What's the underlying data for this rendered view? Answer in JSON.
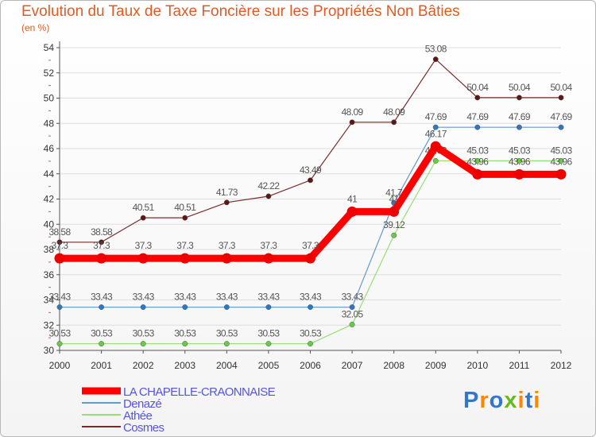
{
  "title": "Evolution du Taux de Taxe Foncière sur les Propriétés Non Bâties",
  "unit_label": "(en %)",
  "logo_text": "Proxiti",
  "colors": {
    "title": "#e05a24",
    "axis": "#555555",
    "grid": "#dddddd",
    "legend_text": "#5555dd"
  },
  "chart_data": {
    "type": "line",
    "title": "Evolution du Taux de Taxe Foncière sur les Propriétés Non Bâties",
    "ylabel": "(en %)",
    "xlabel": "",
    "x": [
      "2000",
      "2001",
      "2002",
      "2003",
      "2004",
      "2005",
      "2006",
      "2007",
      "2008",
      "2009",
      "2010",
      "2011",
      "2012"
    ],
    "ylim": [
      30,
      54
    ],
    "yticks": [
      30,
      32,
      34,
      36,
      38,
      40,
      42,
      44,
      46,
      48,
      50,
      52,
      54
    ],
    "grid": "horizontal",
    "legend_position": "bottom-left",
    "series": [
      {
        "name": "Cosmes",
        "color": "#7a2a2a",
        "point_color": "#5a1818",
        "width": 1.2,
        "values": [
          38.58,
          38.58,
          40.51,
          40.51,
          41.73,
          42.22,
          43.49,
          48.09,
          48.09,
          53.08,
          50.04,
          50.04,
          50.04
        ],
        "labels": [
          "38.58",
          "38.58",
          "40.51",
          "40.51",
          "41.73",
          "42.22",
          "43.49",
          "48.09",
          "48.09",
          "53.08",
          "50.04",
          "50.04",
          "50.04"
        ]
      },
      {
        "name": "Denazé",
        "color": "#6699cc",
        "point_color": "#3377bb",
        "width": 1.2,
        "values": [
          33.43,
          33.43,
          33.43,
          33.43,
          33.43,
          33.43,
          33.43,
          33.43,
          41.7,
          47.69,
          47.69,
          47.69,
          47.69
        ],
        "labels": [
          "33.43",
          "33.43",
          "33.43",
          "33.43",
          "33.43",
          "33.43",
          "33.43",
          "33.43",
          "41.7",
          "47.69",
          "47.69",
          "47.69",
          "47.69"
        ]
      },
      {
        "name": "Athée",
        "color": "#99dd77",
        "point_color": "#66cc44",
        "width": 1.2,
        "values": [
          30.53,
          30.53,
          30.53,
          30.53,
          30.53,
          30.53,
          30.53,
          32.05,
          39.12,
          45.03,
          45.03,
          45.03,
          45.03
        ],
        "labels": [
          "30.53",
          "30.53",
          "30.53",
          "30.53",
          "30.53",
          "30.53",
          "30.53",
          "32.05",
          "39.12",
          "45.03",
          "45.03",
          "45.03",
          "45.03"
        ]
      },
      {
        "name": "LA CHAPELLE-CRAONNAISE",
        "color": "#ff0000",
        "point_color": "#ee0000",
        "width": 9,
        "values": [
          37.3,
          37.3,
          37.3,
          37.3,
          37.3,
          37.3,
          37.3,
          41,
          41,
          46.17,
          43.96,
          43.96,
          43.96
        ],
        "labels": [
          "37.3",
          "37.3",
          "37.3",
          "37.3",
          "37.3",
          "37.3",
          "37.3",
          "41",
          "41",
          "46.17",
          "43.96",
          "43.96",
          "43.96"
        ]
      }
    ],
    "legend": [
      "LA CHAPELLE-CRAONNAISE",
      "Denazé",
      "Athée",
      "Cosmes"
    ]
  }
}
